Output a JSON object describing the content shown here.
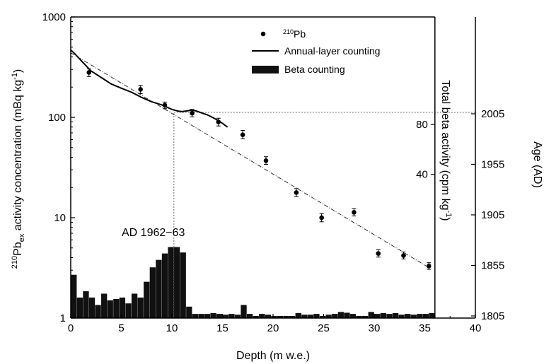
{
  "chart_data": {
    "type": "scatter",
    "x_axis": {
      "label": "Depth (m w.e.)",
      "range": [
        0,
        40
      ],
      "ticks": [
        "0",
        "5",
        "10",
        "15",
        "20",
        "25",
        "30",
        "35",
        "40"
      ]
    },
    "y_left": {
      "label": "210Pbex activity concentration (mBq kg-1)",
      "label_parts": {
        "sup": "210",
        "base": "Pb",
        "sub": "ex",
        "rest": " activity concentration (mBq kg",
        "unit_sup": "-1",
        "close": ")"
      },
      "scale": "log",
      "range": [
        1,
        1000
      ],
      "ticks": [
        "1",
        "10",
        "100",
        "1000"
      ]
    },
    "y_right_inner": {
      "label": "Total beta activity (cpm kg-1)",
      "label_parts": {
        "base": "Total beta activity (cpm kg",
        "sup": "-1",
        "close": ")"
      },
      "ticks": [
        "40",
        "80"
      ],
      "tick_log_positions": [
        27,
        85
      ]
    },
    "y_right_outer": {
      "label": "Age (AD)",
      "ticks": [
        "1805",
        "1855",
        "1905",
        "1955",
        "2005"
      ]
    },
    "legend": {
      "placement": "top-right",
      "items": [
        {
          "marker": "dot",
          "sup": "210",
          "label": "Pb"
        },
        {
          "marker": "line",
          "label": "Annual-layer counting"
        },
        {
          "marker": "bar",
          "label": "Beta counting"
        }
      ]
    },
    "annotation": {
      "text": "AD 1962−63",
      "x": 10.2,
      "y": 112
    },
    "series": [
      {
        "name": "210Pb",
        "kind": "points_with_errorbars",
        "points": [
          {
            "x": 1.8,
            "y": 280,
            "err": [
              255,
              305
            ]
          },
          {
            "x": 6.9,
            "y": 190,
            "err": [
              172,
              208
            ]
          },
          {
            "x": 9.3,
            "y": 132,
            "err": [
              122,
              142
            ]
          },
          {
            "x": 12.0,
            "y": 110,
            "err": [
              101,
              120
            ]
          },
          {
            "x": 14.6,
            "y": 90,
            "err": [
              82,
              98
            ]
          },
          {
            "x": 17.0,
            "y": 67,
            "err": [
              61,
              74
            ]
          },
          {
            "x": 19.3,
            "y": 37,
            "err": [
              34,
              40.5
            ]
          },
          {
            "x": 22.3,
            "y": 17.8,
            "err": [
              16.2,
              19.5
            ]
          },
          {
            "x": 24.8,
            "y": 10,
            "err": [
              9.1,
              11
            ]
          },
          {
            "x": 28.0,
            "y": 11.3,
            "err": [
              10.4,
              12.3
            ]
          },
          {
            "x": 30.4,
            "y": 4.4,
            "err": [
              4.05,
              4.8
            ]
          },
          {
            "x": 32.9,
            "y": 4.2,
            "err": [
              3.88,
              4.55
            ]
          },
          {
            "x": 35.4,
            "y": 3.3,
            "err": [
              3.06,
              3.56
            ]
          }
        ]
      },
      {
        "name": "Annual-layer counting",
        "kind": "line",
        "x": [
          0,
          0.5,
          1,
          2,
          3,
          4,
          5,
          6,
          7,
          8,
          9,
          10,
          10.5,
          11,
          11.5,
          12,
          12.5,
          13,
          13.5,
          14,
          14.5,
          15,
          15.5
        ],
        "y": [
          470,
          420,
          370,
          290,
          250,
          215,
          195,
          178,
          158,
          143,
          133,
          120,
          116,
          114,
          116,
          118,
          115,
          110,
          106,
          100,
          94,
          87,
          80
        ]
      },
      {
        "name": "Beta counting",
        "kind": "bars",
        "bin_width": 0.58,
        "x": [
          0.3,
          0.9,
          1.5,
          2.1,
          2.7,
          3.3,
          3.9,
          4.5,
          5.1,
          5.7,
          6.3,
          6.9,
          7.5,
          8.1,
          8.7,
          9.3,
          9.9,
          10.5,
          11.1,
          11.7,
          12.3,
          12.9,
          13.5,
          14.1,
          14.7,
          15.3,
          15.9,
          16.5,
          17.1,
          17.7,
          18.3,
          18.9,
          19.5,
          20.1,
          20.7,
          21.3,
          21.9,
          22.5,
          23.1,
          23.7,
          24.3,
          24.9,
          25.5,
          26.1,
          26.7,
          27.3,
          27.9,
          28.5,
          29.1,
          29.7,
          30.3,
          30.9,
          31.5,
          32.1,
          32.7,
          33.3,
          33.9,
          34.5,
          35.1,
          35.7
        ],
        "values": [
          2.7,
          1.6,
          1.85,
          1.6,
          1.35,
          1.75,
          1.5,
          1.55,
          1.6,
          1.4,
          1.75,
          1.6,
          2.3,
          3.2,
          3.8,
          4.4,
          5.1,
          5.1,
          4.5,
          1.3,
          1.1,
          1.1,
          1.1,
          1.12,
          1.1,
          1.08,
          1.1,
          1.08,
          1.35,
          1.1,
          1.05,
          1.1,
          1.08,
          1.05,
          1.05,
          1.05,
          1.05,
          1.12,
          1.08,
          1.08,
          1.1,
          1.05,
          1.08,
          1.1,
          1.15,
          1.13,
          1.1,
          1.05,
          1.05,
          1.15,
          1.1,
          1.12,
          1.1,
          1.12,
          1.08,
          1.1,
          1.08,
          1.1,
          1.1,
          1.12
        ]
      },
      {
        "name": "Exponential fit",
        "kind": "fit_line",
        "from": {
          "x": 0,
          "y": 440
        },
        "to": {
          "x": 35.6,
          "y": 3.1
        }
      }
    ],
    "reference_lines": [
      {
        "orientation": "horizontal",
        "y": 112,
        "from_x": 10.2,
        "to_x": 40
      },
      {
        "orientation": "vertical",
        "x": 10.2,
        "from_y": 1,
        "to_y": 112
      }
    ],
    "separator_line_x": 36,
    "grid": false
  }
}
